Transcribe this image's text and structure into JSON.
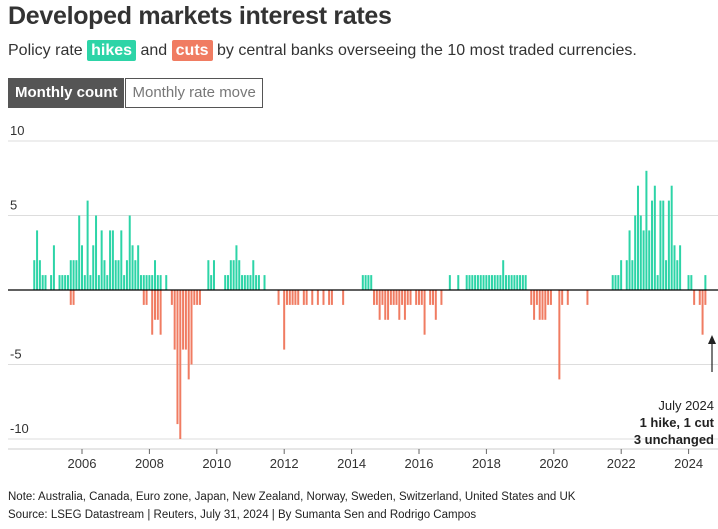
{
  "title": "Developed markets interest rates",
  "subtitle": {
    "pre": "Policy rate ",
    "hikes": "hikes",
    "mid": " and ",
    "cuts": "cuts",
    "post": " by central banks overseeing the 10 most traded currencies."
  },
  "colors": {
    "hikes": "#2dd4a7",
    "cuts": "#f07c62",
    "zero": "#000000",
    "grid": "#dddddd"
  },
  "buttons": {
    "monthly_count": "Monthly count",
    "monthly_rate_move": "Monthly rate move"
  },
  "annotation": {
    "line1": "July 2024",
    "line2": "1 hike, 1 cut",
    "line3": "3 unchanged"
  },
  "notes": {
    "note": "Note: Australia, Canada, Euro zone, Japan, New Zealand, Norway, Sweden, Switzerland, United States and UK",
    "source": "Source: LSEG Datastream | Reuters, July 31, 2024 | By Sumanta Sen and Rodrigo Campos"
  },
  "chart_data": {
    "type": "bar",
    "title": "Developed markets interest rates",
    "xlabel": "",
    "ylabel": "",
    "ylim": [
      -10,
      10
    ],
    "yticks": [
      "10",
      "5",
      "-5",
      "-10"
    ],
    "ytick_values": [
      10,
      5,
      -5,
      -10
    ],
    "xticks": [
      "2006",
      "2008",
      "2010",
      "2012",
      "2014",
      "2016",
      "2018",
      "2020",
      "2022",
      "2024"
    ],
    "start_month": "2004-08",
    "end_month": "2024-07",
    "series": [
      {
        "name": "hikes",
        "values": [
          2,
          4,
          2,
          1,
          1,
          0,
          1,
          3,
          0,
          1,
          1,
          1,
          1,
          2,
          2,
          2,
          5,
          3,
          1,
          6,
          1,
          3,
          5,
          1,
          4,
          2,
          1,
          4,
          4,
          2,
          2,
          4,
          1,
          2,
          5,
          3,
          2,
          3,
          1,
          1,
          1,
          1,
          1,
          2,
          1,
          1,
          0,
          1,
          0,
          0,
          0,
          0,
          0,
          0,
          0,
          0,
          0,
          0,
          0,
          0,
          0,
          0,
          2,
          1,
          2,
          0,
          0,
          0,
          1,
          1,
          2,
          2,
          3,
          2,
          1,
          1,
          1,
          1,
          2,
          1,
          1,
          0,
          1,
          0,
          0,
          0,
          0,
          0,
          0,
          0,
          0,
          0,
          0,
          0,
          0,
          0,
          0,
          0,
          0,
          0,
          0,
          0,
          0,
          0,
          0,
          0,
          0,
          0,
          0,
          0,
          0,
          0,
          0,
          0,
          0,
          0,
          0,
          1,
          1,
          1,
          1,
          0,
          0,
          0,
          0,
          0,
          0,
          0,
          0,
          0,
          0,
          0,
          0,
          0,
          0,
          0,
          0,
          0,
          0,
          0,
          0,
          0,
          0,
          0,
          0,
          0,
          0,
          0,
          1,
          0,
          0,
          1,
          0,
          0,
          1,
          1,
          1,
          1,
          1,
          1,
          1,
          1,
          1,
          1,
          1,
          1,
          1,
          2,
          1,
          1,
          1,
          1,
          1,
          1,
          1,
          1,
          0,
          0,
          0,
          0,
          0,
          0,
          0,
          0,
          0,
          0,
          0,
          0,
          0,
          0,
          0,
          0,
          0,
          0,
          0,
          0,
          0,
          0,
          0,
          0,
          0,
          0,
          0,
          0,
          0,
          0,
          1,
          1,
          1,
          2,
          0,
          2,
          4,
          2,
          5,
          7,
          5,
          4,
          8,
          4,
          6,
          7,
          1,
          6,
          6,
          2,
          6,
          7,
          3,
          2,
          3,
          0,
          0,
          1,
          1,
          0,
          0,
          0,
          0,
          1
        ]
      },
      {
        "name": "cuts",
        "values": [
          0,
          0,
          0,
          0,
          0,
          0,
          0,
          0,
          0,
          0,
          0,
          0,
          0,
          1,
          1,
          0,
          0,
          0,
          0,
          0,
          0,
          0,
          0,
          0,
          0,
          0,
          0,
          0,
          0,
          0,
          0,
          0,
          0,
          0,
          0,
          0,
          0,
          0,
          0,
          1,
          1,
          0,
          3,
          2,
          2,
          3,
          0,
          0,
          0,
          1,
          4,
          9,
          10,
          4,
          4,
          6,
          5,
          1,
          1,
          1,
          0,
          0,
          0,
          0,
          0,
          0,
          0,
          0,
          0,
          0,
          0,
          0,
          0,
          0,
          0,
          0,
          0,
          0,
          0,
          0,
          0,
          0,
          0,
          0,
          0,
          0,
          0,
          1,
          0,
          4,
          1,
          1,
          1,
          1,
          1,
          0,
          1,
          1,
          0,
          1,
          0,
          1,
          0,
          1,
          0,
          1,
          1,
          0,
          0,
          0,
          1,
          0,
          0,
          0,
          0,
          0,
          0,
          0,
          0,
          0,
          0,
          1,
          1,
          2,
          1,
          2,
          2,
          1,
          1,
          1,
          2,
          1,
          2,
          1,
          1,
          0,
          1,
          1,
          1,
          3,
          0,
          1,
          1,
          2,
          0,
          1,
          0,
          0,
          0,
          0,
          0,
          0,
          0,
          0,
          0,
          0,
          0,
          0,
          0,
          0,
          0,
          0,
          0,
          0,
          0,
          0,
          0,
          0,
          0,
          0,
          0,
          0,
          0,
          0,
          0,
          0,
          0,
          1,
          2,
          1,
          2,
          2,
          2,
          1,
          1,
          0,
          0,
          6,
          1,
          0,
          1,
          0,
          0,
          0,
          0,
          0,
          0,
          1,
          0,
          0,
          0,
          0,
          0,
          0,
          0,
          0,
          0,
          0,
          0,
          0,
          0,
          0,
          0,
          0,
          0,
          0,
          0,
          0,
          0,
          0,
          0,
          0,
          0,
          0,
          0,
          0,
          0,
          0,
          0,
          0,
          0,
          0,
          0,
          0,
          0,
          1,
          0,
          1,
          3,
          1
        ]
      }
    ],
    "grid": true,
    "legend": "inline in subtitle"
  }
}
